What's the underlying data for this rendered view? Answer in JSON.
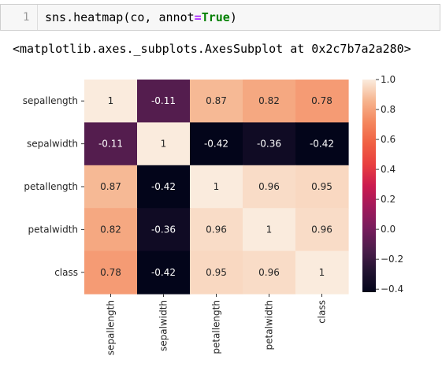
{
  "cell": {
    "line_number": "1",
    "code_prefix": "sns.heatmap(co, annot",
    "code_eq": "=",
    "code_true": "True",
    "code_suffix": ")"
  },
  "output_text": "<matplotlib.axes._subplots.AxesSubplot at 0x2c7b7a2a280>",
  "chart_data": {
    "type": "heatmap",
    "x": [
      "sepallength",
      "sepalwidth",
      "petallength",
      "petalwidth",
      "class"
    ],
    "y": [
      "sepallength",
      "sepalwidth",
      "petallength",
      "petalwidth",
      "class"
    ],
    "values": [
      [
        1,
        -0.11,
        0.87,
        0.82,
        0.78
      ],
      [
        -0.11,
        1,
        -0.42,
        -0.36,
        -0.42
      ],
      [
        0.87,
        -0.42,
        1,
        0.96,
        0.95
      ],
      [
        0.82,
        -0.36,
        0.96,
        1,
        0.96
      ],
      [
        0.78,
        -0.42,
        0.95,
        0.96,
        1
      ]
    ],
    "annotations": [
      [
        "1",
        "-0.11",
        "0.87",
        "0.82",
        "0.78"
      ],
      [
        "-0.11",
        "1",
        "-0.42",
        "-0.36",
        "-0.42"
      ],
      [
        "0.87",
        "-0.42",
        "1",
        "0.96",
        "0.95"
      ],
      [
        "0.82",
        "-0.36",
        "0.96",
        "1",
        "0.96"
      ],
      [
        "0.78",
        "-0.42",
        "0.95",
        "0.96",
        "1"
      ]
    ],
    "colorbar_ticks": [
      "1.0",
      "0.8",
      "0.6",
      "0.4",
      "0.2",
      "0.0",
      "−0.2",
      "−0.4"
    ],
    "colorbar_tick_values": [
      1.0,
      0.8,
      0.6,
      0.4,
      0.2,
      0.0,
      -0.2,
      -0.4
    ],
    "vmin": -0.42,
    "vmax": 1.0,
    "colormap": "rocket",
    "title": "",
    "xlabel": "",
    "ylabel": ""
  }
}
